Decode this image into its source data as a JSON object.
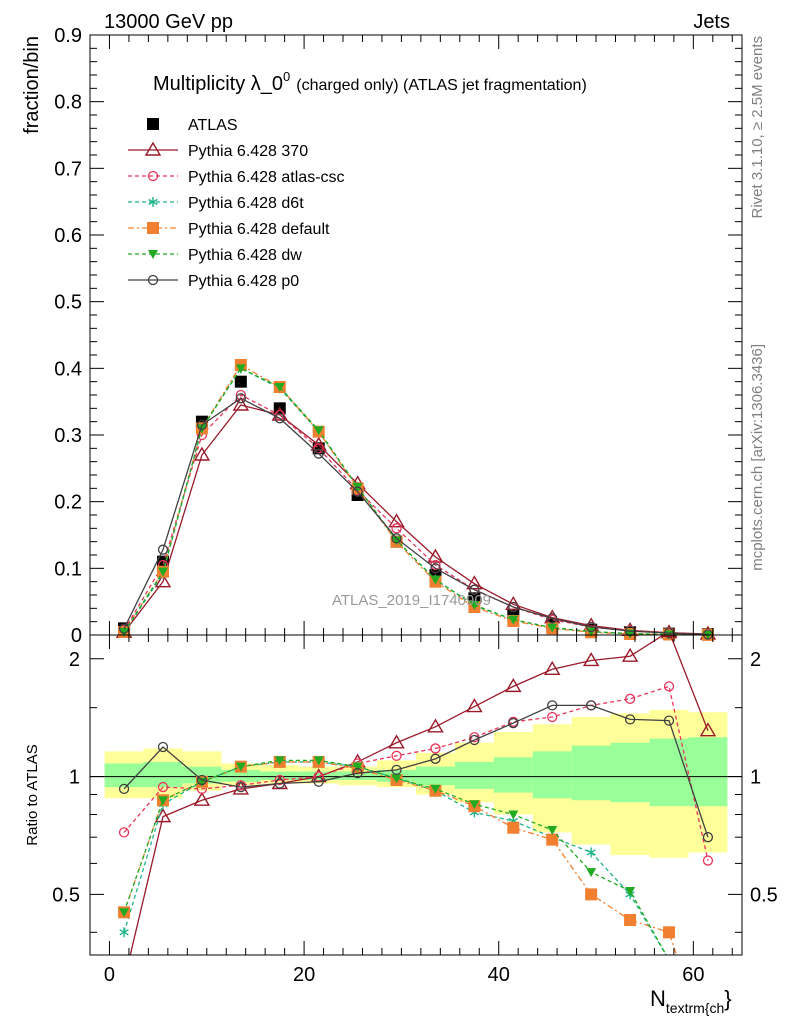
{
  "header": {
    "left": "13000 GeV pp",
    "right": "Jets"
  },
  "side_labels": {
    "rivet": "Rivet 3.1.10, ≥ 2.5M events",
    "mcplots": "mcplots.cern.ch [arXiv:1306.3436]"
  },
  "watermark": "ATLAS_2019_I1740909",
  "chart_data": [
    {
      "type": "line",
      "title": "Multiplicity λ_0",
      "title_sup": "0",
      "title_rest": "(charged only) (ATLAS jet fragmentation)",
      "xlabel": "N",
      "xlabel_sub": "textrm{ch",
      "xlabel_tail": "}",
      "ylabel": "fraction/bin",
      "xlim": [
        -2,
        65
      ],
      "ylim": [
        0,
        0.9
      ],
      "xticks": [
        0,
        20,
        40,
        60
      ],
      "yticks": [
        0,
        0.1,
        0.2,
        0.3,
        0.4,
        0.5,
        0.6,
        0.7,
        0.8,
        0.9
      ],
      "ytick_labels": [
        "0",
        "0.1",
        "0.2",
        "0.3",
        "0.4",
        "0.5",
        "0.6",
        "0.7",
        "0.8",
        "0.9"
      ],
      "x": [
        1.5,
        5.5,
        9.5,
        13.5,
        17.5,
        21.5,
        25.5,
        29.5,
        33.5,
        37.5,
        41.5,
        45.5,
        49.5,
        53.5,
        57.5,
        61.5
      ],
      "series": [
        {
          "name": "ATLAS",
          "color": "#000000",
          "marker": "square",
          "dash": "",
          "values": [
            0.01,
            0.11,
            0.32,
            0.38,
            0.34,
            0.28,
            0.21,
            0.14,
            0.09,
            0.055,
            0.03,
            0.016,
            0.008,
            0.004,
            0.002,
            0.001
          ]
        },
        {
          "name": "Pythia 6.428 370",
          "color": "#9a1a2a",
          "marker": "triangle-open",
          "dash": "",
          "values": [
            0.004,
            0.08,
            0.27,
            0.345,
            0.33,
            0.285,
            0.227,
            0.17,
            0.117,
            0.077,
            0.046,
            0.026,
            0.014,
            0.007,
            0.0035,
            0.0015
          ]
        },
        {
          "name": "Pythia 6.428 atlas-csc",
          "color": "#e8355a",
          "marker": "circle-open",
          "dash": "4,3",
          "values": [
            0.007,
            0.105,
            0.3,
            0.36,
            0.33,
            0.28,
            0.217,
            0.16,
            0.105,
            0.068,
            0.042,
            0.023,
            0.012,
            0.0065,
            0.0035,
            0.0006
          ]
        },
        {
          "name": "Pythia 6.428 d6t",
          "color": "#1fb48a",
          "marker": "star",
          "dash": "4,3",
          "values": [
            0.004,
            0.092,
            0.31,
            0.4,
            0.37,
            0.305,
            0.222,
            0.142,
            0.083,
            0.044,
            0.023,
            0.011,
            0.005,
            0.002,
            0.0007,
            0.0002
          ]
        },
        {
          "name": "Pythia 6.428 default",
          "color": "#f08030",
          "marker": "square",
          "dash": "6,3,2,3",
          "values": [
            0.0045,
            0.095,
            0.31,
            0.405,
            0.372,
            0.305,
            0.22,
            0.14,
            0.08,
            0.042,
            0.021,
            0.01,
            0.004,
            0.0015,
            0.0008,
            0.0002
          ]
        },
        {
          "name": "Pythia 6.428 dw",
          "color": "#22aa22",
          "marker": "triangle-down",
          "dash": "4,3",
          "values": [
            0.0045,
            0.095,
            0.31,
            0.4,
            0.372,
            0.307,
            0.222,
            0.142,
            0.083,
            0.045,
            0.023,
            0.011,
            0.005,
            0.0022,
            0.0008,
            0.0002
          ]
        },
        {
          "name": "Pythia 6.428 p0",
          "color": "#404040",
          "marker": "circle-open",
          "dash": "",
          "values": [
            0.0095,
            0.128,
            0.315,
            0.355,
            0.325,
            0.272,
            0.215,
            0.145,
            0.1,
            0.068,
            0.042,
            0.025,
            0.012,
            0.0058,
            0.0028,
            0.0007
          ]
        }
      ]
    },
    {
      "type": "line",
      "ylabel": "Ratio to ATLAS",
      "xlim": [
        -2,
        65
      ],
      "ylim": [
        0.35,
        2.3
      ],
      "ytick_labels": [
        "0.5",
        "1",
        "2"
      ],
      "yticks": [
        0.5,
        1,
        2
      ],
      "log_scale_y": true,
      "x": [
        1.5,
        5.5,
        9.5,
        13.5,
        17.5,
        21.5,
        25.5,
        29.5,
        33.5,
        37.5,
        41.5,
        45.5,
        49.5,
        53.5,
        57.5,
        61.5
      ],
      "bands": {
        "yellow": [
          [
            0.88,
            1.16
          ],
          [
            0.88,
            1.18
          ],
          [
            0.92,
            1.16
          ],
          [
            0.95,
            1.08
          ],
          [
            0.96,
            1.07
          ],
          [
            0.96,
            1.06
          ],
          [
            0.95,
            1.06
          ],
          [
            0.94,
            1.1
          ],
          [
            0.9,
            1.15
          ],
          [
            0.86,
            1.22
          ],
          [
            0.8,
            1.3
          ],
          [
            0.72,
            1.36
          ],
          [
            0.67,
            1.42
          ],
          [
            0.63,
            1.45
          ],
          [
            0.62,
            1.48
          ],
          [
            0.64,
            1.46
          ]
        ],
        "green": [
          [
            0.94,
            1.08
          ],
          [
            0.94,
            1.09
          ],
          [
            0.96,
            1.06
          ],
          [
            0.97,
            1.04
          ],
          [
            0.98,
            1.03
          ],
          [
            0.98,
            1.03
          ],
          [
            0.98,
            1.03
          ],
          [
            0.97,
            1.04
          ],
          [
            0.95,
            1.06
          ],
          [
            0.93,
            1.09
          ],
          [
            0.91,
            1.12
          ],
          [
            0.88,
            1.16
          ],
          [
            0.87,
            1.2
          ],
          [
            0.86,
            1.22
          ],
          [
            0.84,
            1.25
          ],
          [
            0.84,
            1.26
          ]
        ]
      },
      "series": [
        {
          "name": "Pythia 6.428 370",
          "values": [
            0.3,
            0.79,
            0.87,
            0.93,
            0.96,
            1.0,
            1.09,
            1.22,
            1.34,
            1.51,
            1.7,
            1.88,
            1.98,
            2.03,
            2.35,
            1.31
          ]
        },
        {
          "name": "Pythia 6.428 atlas-csc",
          "values": [
            0.72,
            0.94,
            0.93,
            0.95,
            0.98,
            1.0,
            1.08,
            1.13,
            1.18,
            1.26,
            1.38,
            1.42,
            1.52,
            1.58,
            1.7,
            0.61
          ]
        },
        {
          "name": "Pythia 6.428 d6t",
          "values": [
            0.4,
            0.85,
            0.97,
            1.06,
            1.09,
            1.09,
            1.06,
            0.99,
            0.92,
            0.81,
            0.77,
            0.7,
            0.64,
            0.5,
            0.34,
            0.2
          ]
        },
        {
          "name": "Pythia 6.428 default",
          "values": [
            0.45,
            0.87,
            0.97,
            1.06,
            1.09,
            1.09,
            1.05,
            0.98,
            0.92,
            0.84,
            0.74,
            0.69,
            0.5,
            0.43,
            0.4,
            0.2
          ]
        },
        {
          "name": "Pythia 6.428 dw",
          "values": [
            0.45,
            0.87,
            0.97,
            1.06,
            1.1,
            1.1,
            1.06,
            0.99,
            0.93,
            0.85,
            0.8,
            0.73,
            0.57,
            0.51,
            0.34,
            0.2
          ]
        },
        {
          "name": "Pythia 6.428 p0",
          "values": [
            0.93,
            1.19,
            0.98,
            0.94,
            0.96,
            0.97,
            1.02,
            1.04,
            1.11,
            1.24,
            1.37,
            1.52,
            1.52,
            1.4,
            1.39,
            0.7
          ]
        }
      ]
    }
  ]
}
